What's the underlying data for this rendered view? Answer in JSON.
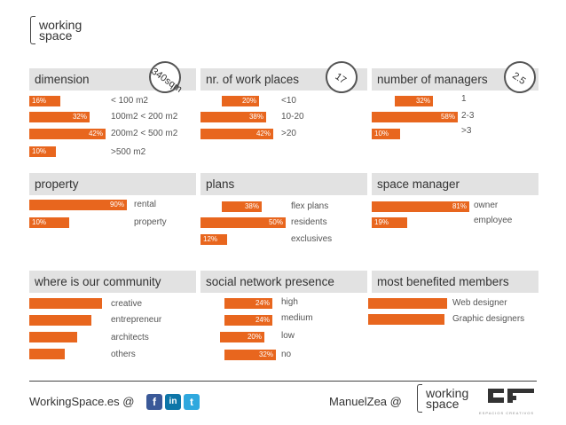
{
  "logo": {
    "line1": "working",
    "line2": "space"
  },
  "sections": {
    "dimension": {
      "title": "dimension",
      "badge": "340sqm",
      "rows": [
        {
          "pct": "16%",
          "label": "< 100 m2"
        },
        {
          "pct": "32%",
          "label": "100m2 < 200 m2"
        },
        {
          "pct": "42%",
          "label": "200m2 < 500 m2"
        },
        {
          "pct": "10%",
          "label": ">500 m2"
        }
      ]
    },
    "work_places": {
      "title": "nr. of work places",
      "badge": "17",
      "rows": [
        {
          "pct": "20%",
          "label": "<10"
        },
        {
          "pct": "38%",
          "label": "10-20"
        },
        {
          "pct": "42%",
          "label": ">20"
        }
      ]
    },
    "managers": {
      "title": "number of managers",
      "badge": "2.5",
      "rows": [
        {
          "pct": "32%",
          "label": "1"
        },
        {
          "pct": "58%",
          "label": "2-3"
        },
        {
          "pct": "10%",
          "label": ">3"
        }
      ]
    },
    "property": {
      "title": "property",
      "rows": [
        {
          "pct": "90%",
          "label": "rental"
        },
        {
          "pct": "10%",
          "label": "property"
        }
      ]
    },
    "plans": {
      "title": "plans",
      "rows": [
        {
          "pct": "38%",
          "label": "flex plans"
        },
        {
          "pct": "50%",
          "label": "residents"
        },
        {
          "pct": "12%",
          "label": "exclusives"
        }
      ]
    },
    "space_manager": {
      "title": "space manager",
      "rows": [
        {
          "pct": "81%",
          "label": "owner"
        },
        {
          "pct": "19%",
          "label": "employee"
        }
      ]
    },
    "community": {
      "title": "where is our community",
      "rows": [
        {
          "label": "creative",
          "value": 0.9
        },
        {
          "label": "entrepreneur",
          "value": 0.77
        },
        {
          "label": "architects",
          "value": 0.59
        },
        {
          "label": "others",
          "value": 0.44
        }
      ]
    },
    "social": {
      "title": "social network presence",
      "rows": [
        {
          "pct": "24%",
          "label": "high"
        },
        {
          "pct": "24%",
          "label": "medium"
        },
        {
          "pct": "20%",
          "label": "low"
        },
        {
          "pct": "32%",
          "label": "no"
        }
      ]
    },
    "benefited": {
      "title": "most benefited members",
      "rows": [
        {
          "label": "Web designer",
          "value": 1.0
        },
        {
          "label": "Graphic designers",
          "value": 0.97
        }
      ]
    }
  },
  "footer": {
    "left_text": "WorkingSpace.es @",
    "right_text": "ManuelZea @",
    "facebook": "f",
    "linkedin": "in",
    "twitter": "t",
    "brand_caption": "ESPACIOS CREATIVOS"
  },
  "colors": {
    "accent": "#e8661e",
    "header_bg": "#e2e2e2"
  }
}
